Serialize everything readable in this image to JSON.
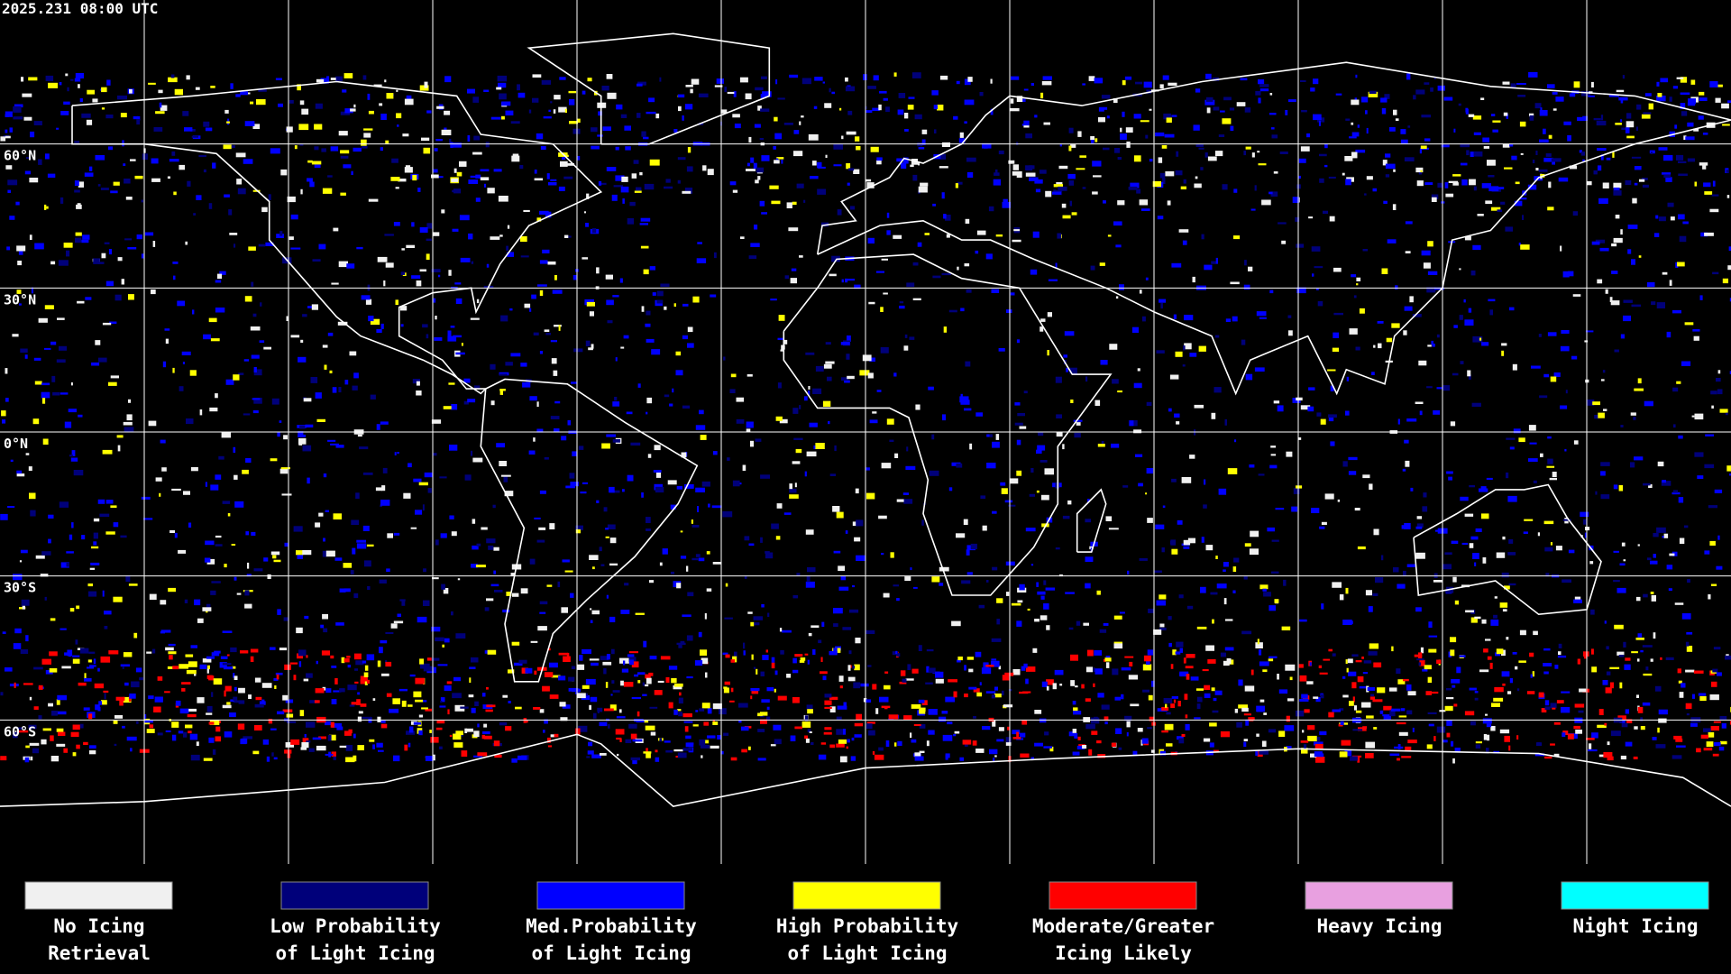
{
  "timestamp": "2025.231 08:00 UTC",
  "latitude_labels": [
    "60°N",
    "30°N",
    "0°N",
    "30°S",
    "60°S"
  ],
  "legend": [
    {
      "lines": [
        "No Icing",
        "Retrieval"
      ],
      "color": "#f0f0f0"
    },
    {
      "lines": [
        "Low Probability",
        "of Light Icing"
      ],
      "color": "#00007a"
    },
    {
      "lines": [
        "Med.Probability",
        "of Light Icing"
      ],
      "color": "#0000ff"
    },
    {
      "lines": [
        "High Probability",
        "of Light Icing"
      ],
      "color": "#ffff00"
    },
    {
      "lines": [
        "Moderate/Greater",
        "Icing Likely"
      ],
      "color": "#ff0000"
    },
    {
      "lines": [
        "Heavy Icing"
      ],
      "color": "#e8a0e0"
    },
    {
      "lines": [
        "Night Icing"
      ],
      "color": "#00ffff"
    }
  ]
}
